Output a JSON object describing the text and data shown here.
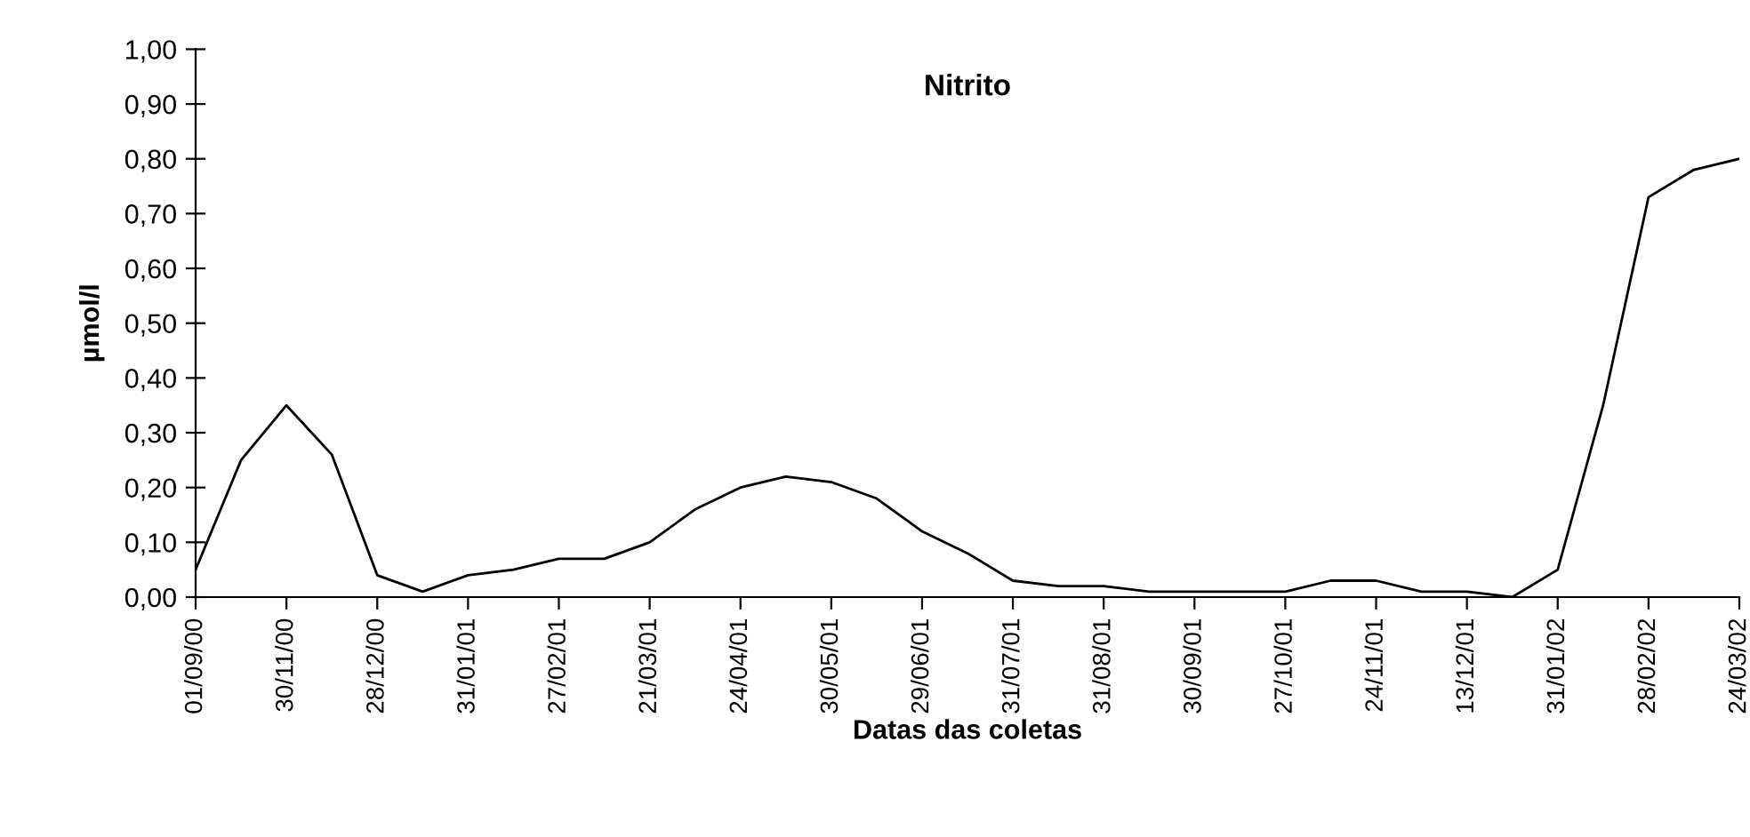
{
  "chart_data": {
    "type": "line",
    "title": "Nitrito",
    "xlabel": "Datas das coletas",
    "ylabel": "µmol/l",
    "categories": [
      "01/09/00",
      null,
      "30/11/00",
      null,
      "28/12/00",
      null,
      "31/01/01",
      null,
      "27/02/01",
      null,
      "21/03/01",
      null,
      "24/04/01",
      null,
      "30/05/01",
      null,
      "29/06/01",
      null,
      "31/07/01",
      null,
      "31/08/01",
      null,
      "30/09/01",
      null,
      "27/10/01",
      null,
      "24/11/01",
      null,
      "13/12/01",
      null,
      "31/01/02",
      null,
      "28/02/02",
      null,
      "24/03/02"
    ],
    "series": [
      {
        "color": "#000000",
        "values": [
          0.05,
          0.25,
          0.35,
          0.26,
          0.04,
          0.01,
          0.04,
          0.05,
          0.07,
          0.07,
          0.1,
          0.16,
          0.2,
          0.22,
          0.21,
          0.18,
          0.12,
          0.08,
          0.03,
          0.02,
          0.02,
          0.01,
          0.01,
          0.01,
          0.01,
          0.03,
          0.03,
          0.01,
          0.01,
          0.0,
          0.05,
          0.35,
          0.73,
          0.78,
          0.8
        ]
      }
    ],
    "ylim": [
      0,
      1
    ],
    "yticks": [
      {
        "value": 0,
        "label": "0,00"
      },
      {
        "value": 0.1,
        "label": "0,10"
      },
      {
        "value": 0.2,
        "label": "0,20"
      },
      {
        "value": 0.3,
        "label": "0,30"
      },
      {
        "value": 0.4,
        "label": "0,40"
      },
      {
        "value": 0.5,
        "label": "0,50"
      },
      {
        "value": 0.6,
        "label": "0,60"
      },
      {
        "value": 0.7,
        "label": "0,70"
      },
      {
        "value": 0.8,
        "label": "0,80"
      },
      {
        "value": 0.9,
        "label": "0,90"
      },
      {
        "value": 1,
        "label": "1,00"
      }
    ],
    "grid": false,
    "legend": false,
    "marker": "none",
    "line_style": "solid"
  }
}
